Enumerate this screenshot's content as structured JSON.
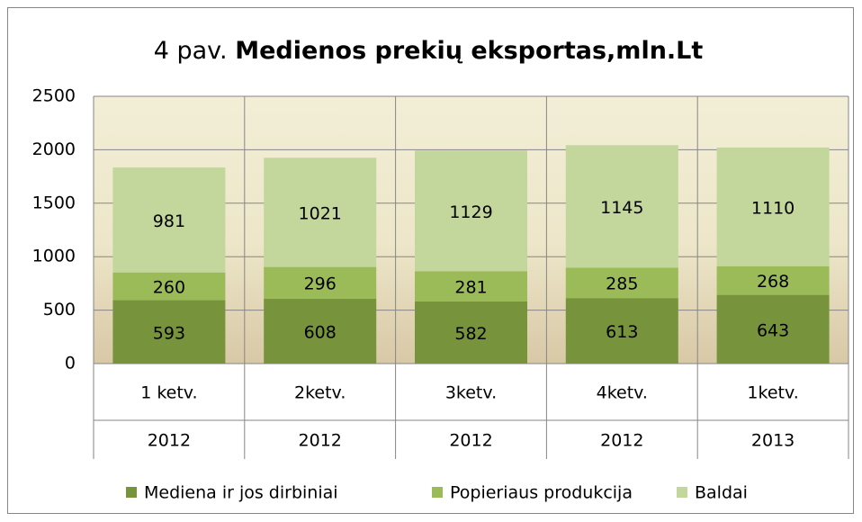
{
  "chart_data": {
    "type": "stacked_bar",
    "title": [
      "4 pav.",
      "Medienos prekių eksportas,mln.Lt"
    ],
    "categories": [
      [
        "1 ketv.",
        "2012"
      ],
      [
        "2ketv.",
        "2012"
      ],
      [
        "3ketv.",
        "2012"
      ],
      [
        "4ketv.",
        "2012"
      ],
      [
        "1ketv.",
        "2013"
      ]
    ],
    "series": [
      {
        "name": "Mediena ir jos dirbiniai",
        "color": "#77933c",
        "values": [
          593,
          608,
          582,
          613,
          643
        ]
      },
      {
        "name": "Popieriaus produkcija",
        "color": "#9bbb59",
        "values": [
          260,
          296,
          281,
          285,
          268
        ]
      },
      {
        "name": "Baldai",
        "color": "#c3d69b",
        "values": [
          981,
          1021,
          1129,
          1145,
          1110
        ]
      }
    ],
    "ylim": [
      0,
      2500
    ],
    "yticks": [
      0,
      500,
      1000,
      1500,
      2000,
      2500
    ],
    "grid": true,
    "legend": "bottom"
  }
}
